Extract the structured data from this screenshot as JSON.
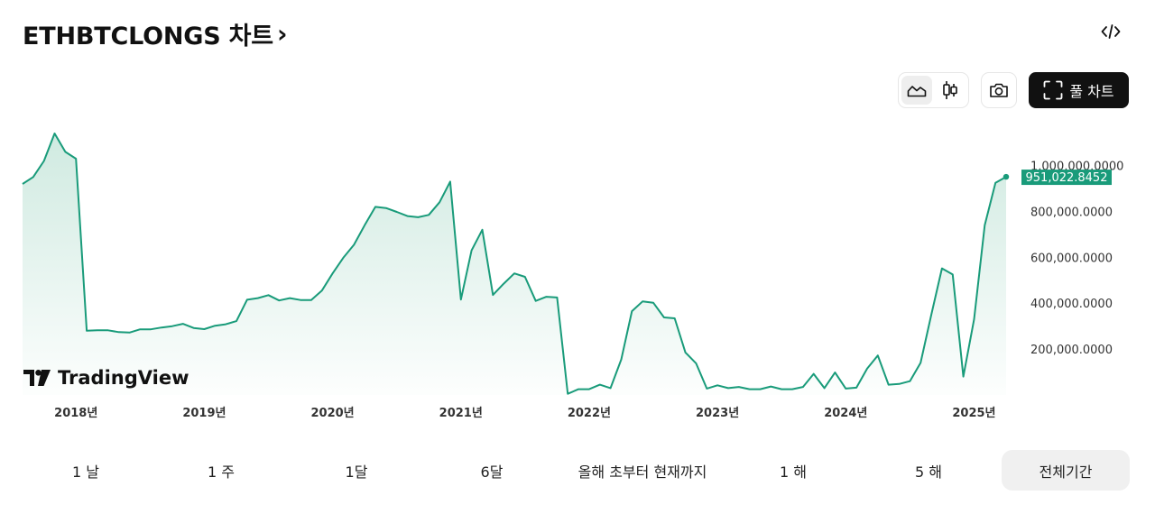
{
  "header": {
    "title": "ETHBTCLONGS 차트",
    "title_chevron": "›"
  },
  "toolbar": {
    "embed_icon": "code-icon",
    "line_icon": "line-chart-icon",
    "candle_icon": "candlestick-icon",
    "camera_icon": "camera-icon",
    "fullscreen_icon": "fullscreen-icon",
    "full_chart_label": "풀 차트",
    "active_chart_type": "line"
  },
  "watermark": {
    "text": "TradingView"
  },
  "range_selector": {
    "items": [
      "1 날",
      "1 주",
      "1달",
      "6달",
      "올해 초부터 현재까지",
      "1 해",
      "5 해",
      "전체기간"
    ],
    "active": "전체기간"
  },
  "colors": {
    "line": "#199b7a",
    "fill_top": "#cde9df",
    "last_price_bg": "#199b7a",
    "last_price_text": "#ffffff",
    "axis_text": "#333333",
    "button_dark": "#111111"
  },
  "chart_data": {
    "type": "area",
    "title": "",
    "xlabel": "",
    "ylabel": "",
    "x_tick_labels": [
      "2018년",
      "2019년",
      "2020년",
      "2021년",
      "2022년",
      "2023년",
      "2024년",
      "2025년"
    ],
    "y_tick_values": [
      200000,
      400000,
      600000,
      800000,
      1000000
    ],
    "y_tick_labels": [
      "200,000.0000",
      "400,000.0000",
      "600,000.0000",
      "800,000.0000",
      "1,000,000.0000"
    ],
    "ylim": [
      0,
      1140000
    ],
    "xlim": [
      "2017-08",
      "2025-04"
    ],
    "grid": false,
    "last_value": 951022.8452,
    "last_value_label": "951,022.8452",
    "series": [
      {
        "values": [
          [
            "2017-08",
            920000
          ],
          [
            "2017-09",
            950000
          ],
          [
            "2017-10",
            1020000
          ],
          [
            "2017-11",
            1140000
          ],
          [
            "2017-12",
            1060000
          ],
          [
            "2018-01",
            1030000
          ],
          [
            "2018-02",
            280000
          ],
          [
            "2018-03",
            282000
          ],
          [
            "2018-04",
            282000
          ],
          [
            "2018-05",
            274000
          ],
          [
            "2018-06",
            272000
          ],
          [
            "2018-07",
            286000
          ],
          [
            "2018-08",
            286000
          ],
          [
            "2018-09",
            294000
          ],
          [
            "2018-10",
            300000
          ],
          [
            "2018-11",
            310000
          ],
          [
            "2018-12",
            292000
          ],
          [
            "2019-01",
            287000
          ],
          [
            "2019-02",
            302000
          ],
          [
            "2019-03",
            308000
          ],
          [
            "2019-04",
            322000
          ],
          [
            "2019-05",
            415000
          ],
          [
            "2019-06",
            422000
          ],
          [
            "2019-07",
            435000
          ],
          [
            "2019-08",
            412000
          ],
          [
            "2019-09",
            422000
          ],
          [
            "2019-10",
            414000
          ],
          [
            "2019-11",
            414000
          ],
          [
            "2019-12",
            455000
          ],
          [
            "2020-01",
            530000
          ],
          [
            "2020-02",
            598000
          ],
          [
            "2020-03",
            655000
          ],
          [
            "2020-04",
            740000
          ],
          [
            "2020-05",
            820000
          ],
          [
            "2020-06",
            815000
          ],
          [
            "2020-07",
            798000
          ],
          [
            "2020-08",
            780000
          ],
          [
            "2020-09",
            775000
          ],
          [
            "2020-10",
            785000
          ],
          [
            "2020-11",
            840000
          ],
          [
            "2020-12",
            930000
          ],
          [
            "2021-01",
            416000
          ],
          [
            "2021-02",
            630000
          ],
          [
            "2021-03",
            720000
          ],
          [
            "2021-04",
            436000
          ],
          [
            "2021-05",
            485000
          ],
          [
            "2021-06",
            530000
          ],
          [
            "2021-07",
            515000
          ],
          [
            "2021-08",
            410000
          ],
          [
            "2021-09",
            428000
          ],
          [
            "2021-10",
            425000
          ],
          [
            "2021-11",
            5000
          ],
          [
            "2021-12",
            25000
          ],
          [
            "2022-01",
            25000
          ],
          [
            "2022-02",
            45000
          ],
          [
            "2022-03",
            30000
          ],
          [
            "2022-04",
            155000
          ],
          [
            "2022-05",
            365000
          ],
          [
            "2022-06",
            408000
          ],
          [
            "2022-07",
            402000
          ],
          [
            "2022-08",
            338000
          ],
          [
            "2022-09",
            334000
          ],
          [
            "2022-10",
            185000
          ],
          [
            "2022-11",
            138000
          ],
          [
            "2022-12",
            28000
          ],
          [
            "2023-01",
            42000
          ],
          [
            "2023-02",
            30000
          ],
          [
            "2023-03",
            35000
          ],
          [
            "2023-04",
            25000
          ],
          [
            "2023-05",
            25000
          ],
          [
            "2023-06",
            37000
          ],
          [
            "2023-07",
            25000
          ],
          [
            "2023-08",
            25000
          ],
          [
            "2023-09",
            35000
          ],
          [
            "2023-10",
            92000
          ],
          [
            "2023-11",
            30000
          ],
          [
            "2023-12",
            98000
          ],
          [
            "2024-01",
            28000
          ],
          [
            "2024-02",
            32000
          ],
          [
            "2024-03",
            115000
          ],
          [
            "2024-04",
            172000
          ],
          [
            "2024-05",
            45000
          ],
          [
            "2024-06",
            48000
          ],
          [
            "2024-07",
            60000
          ],
          [
            "2024-08",
            140000
          ],
          [
            "2024-09",
            350000
          ],
          [
            "2024-10",
            552000
          ],
          [
            "2024-11",
            525000
          ],
          [
            "2024-12",
            80000
          ],
          [
            "2025-01",
            330000
          ],
          [
            "2025-02",
            740000
          ],
          [
            "2025-03",
            925000
          ],
          [
            "2025-04",
            951022.8452
          ]
        ]
      }
    ]
  }
}
